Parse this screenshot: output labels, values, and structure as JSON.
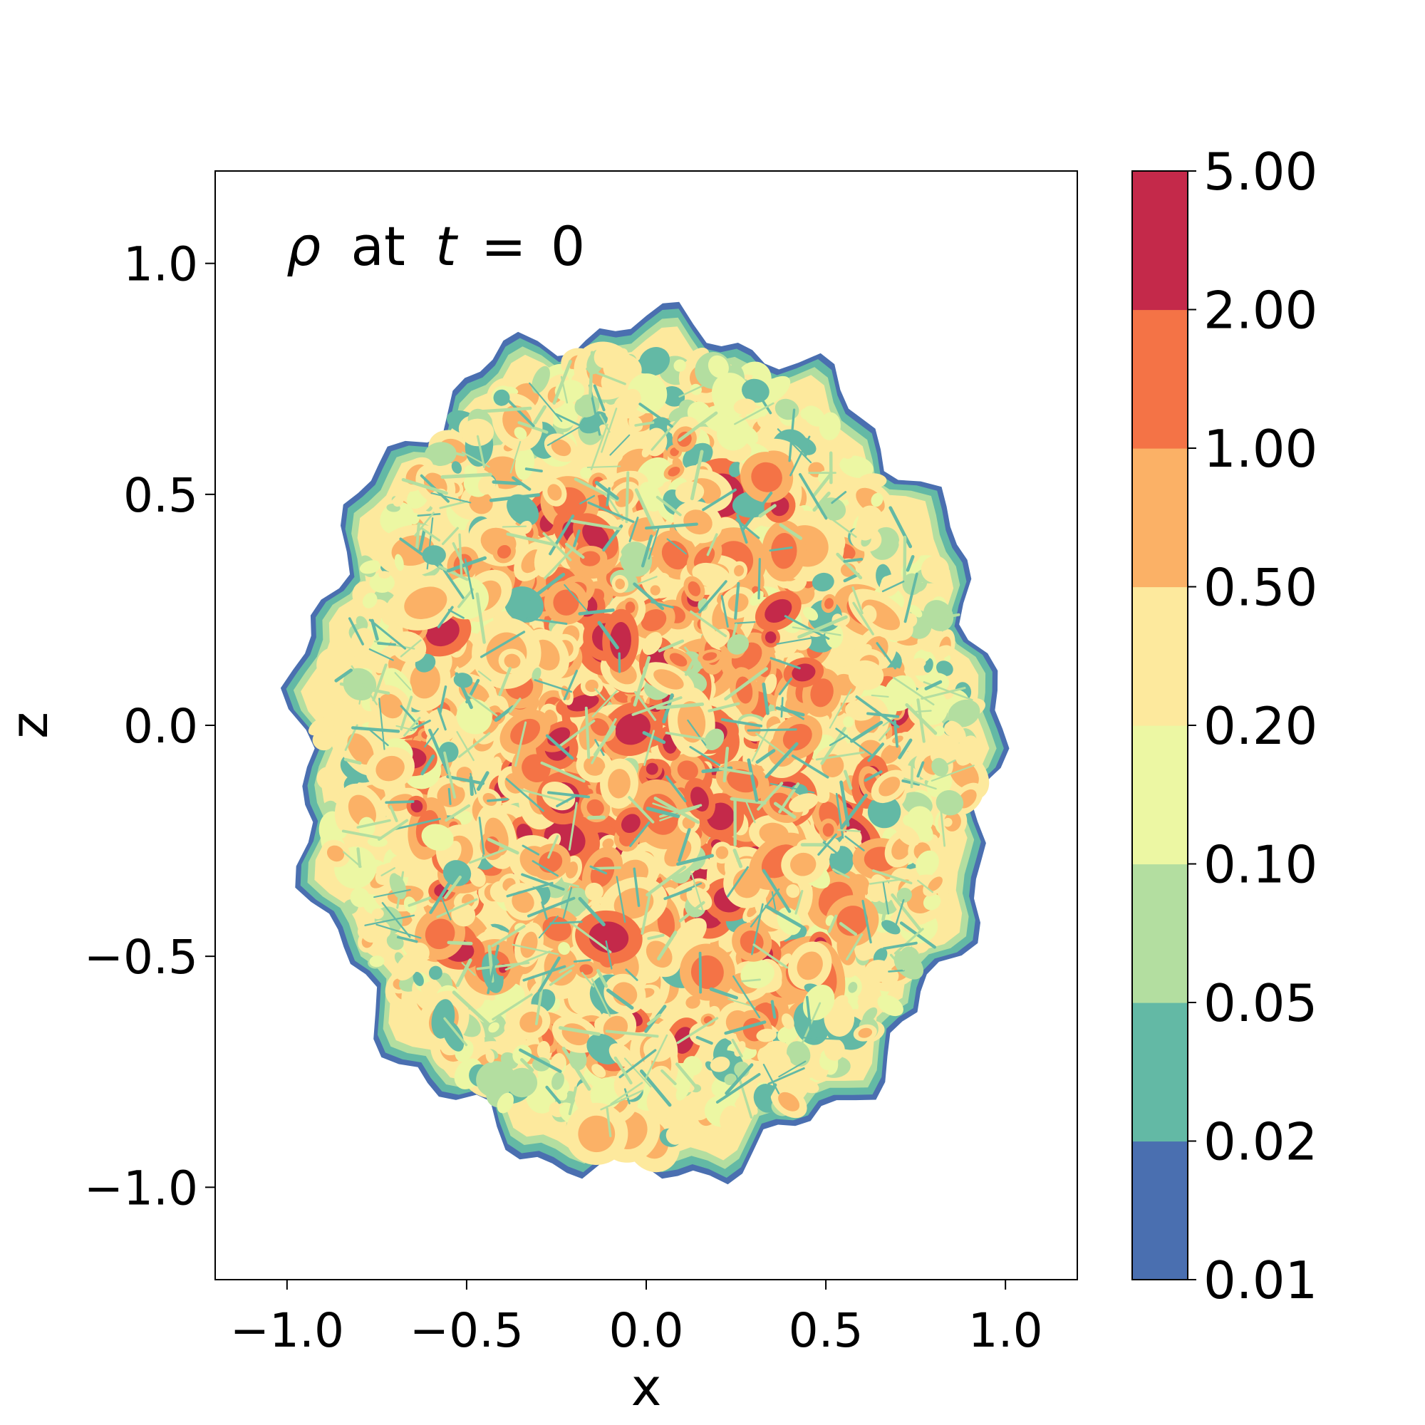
{
  "chart_data": {
    "type": "heatmap",
    "title": "",
    "annotation": {
      "symbol": "ρ",
      "word": "at",
      "time_var": "t",
      "equals": "=",
      "time_value": "0"
    },
    "xlabel": "x",
    "ylabel": "z",
    "xlim": [
      -1.2,
      1.2
    ],
    "ylim": [
      -1.2,
      1.2
    ],
    "xticks": [
      -1.0,
      -0.5,
      0.0,
      0.5,
      1.0
    ],
    "yticks": [
      -1.0,
      -0.5,
      0.0,
      0.5,
      1.0
    ],
    "xtick_labels": [
      "−1.0",
      "−0.5",
      "0.0",
      "0.5",
      "1.0"
    ],
    "ytick_labels": [
      "−1.0",
      "−0.5",
      "0.0",
      "0.5",
      "1.0"
    ],
    "grid": false,
    "colorbar": {
      "levels": [
        0.01,
        0.02,
        0.05,
        0.1,
        0.2,
        0.5,
        1.0,
        2.0,
        5.0
      ],
      "labels": [
        "0.01",
        "0.02",
        "0.05",
        "0.10",
        "0.20",
        "0.50",
        "1.00",
        "2.00",
        "5.00"
      ],
      "colors": [
        "#4a6fb0",
        "#63b9a5",
        "#b3dea0",
        "#ecf7a3",
        "#fde99d",
        "#fbb166",
        "#f47346",
        "#c4294a"
      ]
    },
    "field": {
      "description_shape": "roughly elliptical clumpy density blob",
      "center": [
        0.0,
        -0.05
      ],
      "semi_axes": [
        0.97,
        0.92
      ]
    }
  }
}
